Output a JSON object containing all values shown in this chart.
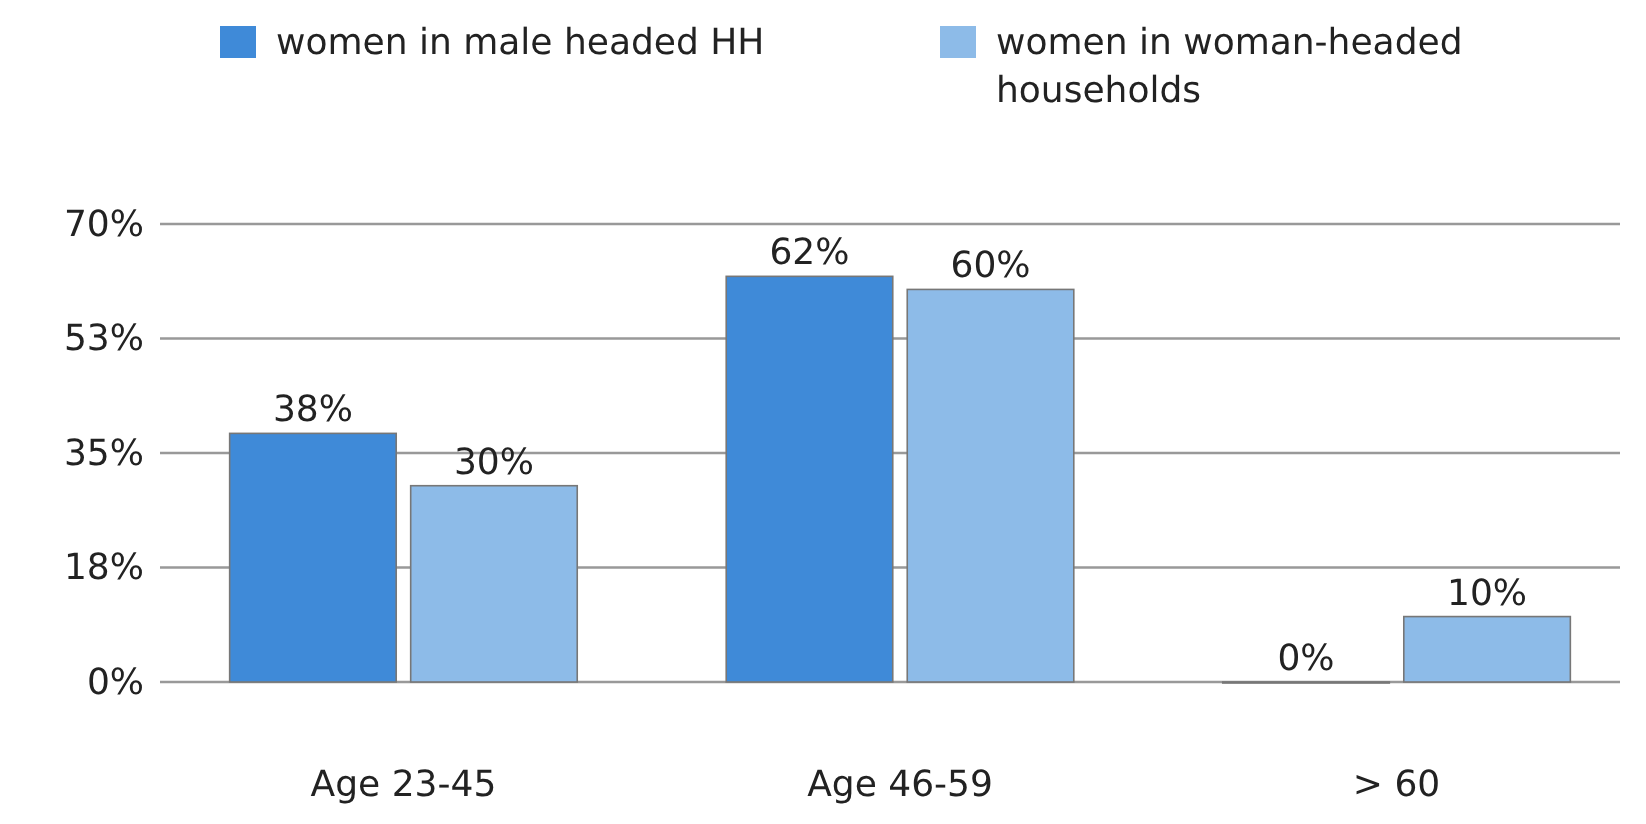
{
  "chart_data": {
    "type": "bar",
    "categories": [
      "Age 23-45",
      "Age 46-59",
      "> 60"
    ],
    "series": [
      {
        "name": "women in male headed HH",
        "color": "#3f8ad8",
        "values": [
          38,
          62,
          0
        ],
        "value_labels": [
          "38%",
          "62%",
          "0%"
        ]
      },
      {
        "name": "women in woman-headed households",
        "color": "#8dbbe8",
        "values": [
          30,
          60,
          10
        ],
        "value_labels": [
          "30%",
          "60%",
          "10%"
        ]
      }
    ],
    "ylim": [
      0,
      70
    ],
    "yticks": [
      {
        "value": 0,
        "label": "0%"
      },
      {
        "value": 17.5,
        "label": "18%"
      },
      {
        "value": 35,
        "label": "35%"
      },
      {
        "value": 52.5,
        "label": "53%"
      },
      {
        "value": 70,
        "label": "70%"
      }
    ],
    "grid": "y",
    "legend": "top"
  }
}
